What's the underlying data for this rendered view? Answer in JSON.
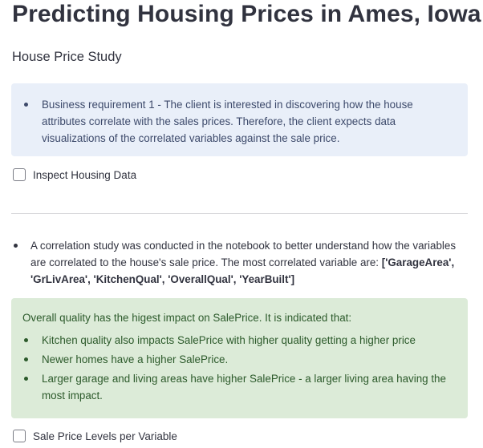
{
  "page": {
    "title": "Predicting Housing Prices in Ames, Iowa",
    "subtitle": "House Price Study"
  },
  "info_box": {
    "items": [
      "Business requirement 1 - The client is interested in discovering how the house attributes correlate with the sales prices. Therefore, the client expects data visualizations of the correlated variables against the sale price."
    ]
  },
  "checkboxes": {
    "inspect_data": {
      "label": "Inspect Housing Data",
      "checked": false
    },
    "price_levels": {
      "label": "Sale Price Levels per Variable",
      "checked": false
    }
  },
  "correlation": {
    "text": "A correlation study was conducted in the notebook to better understand how the variables are correlated to the house's sale price. The most correlated variable are: ",
    "variables": "['GarageArea', 'GrLivArea', 'KitchenQual', 'OverallQual', 'YearBuilt']"
  },
  "success_box": {
    "intro": "Overall quality has the higest impact on SalePrice. It is indicated that:",
    "items": [
      "Kitchen quality also impacts SalePrice with higher quality getting a higher price",
      "Newer homes have a higher SalePrice.",
      "Larger garage and living areas have higher SalePrice - a larger living area having the most impact."
    ]
  },
  "colors": {
    "info_bg": "#e9eff9",
    "info_text": "#3d4a6b",
    "success_bg": "#dcebd8",
    "success_text": "#2c5a2b",
    "body_text": "#31333f"
  }
}
